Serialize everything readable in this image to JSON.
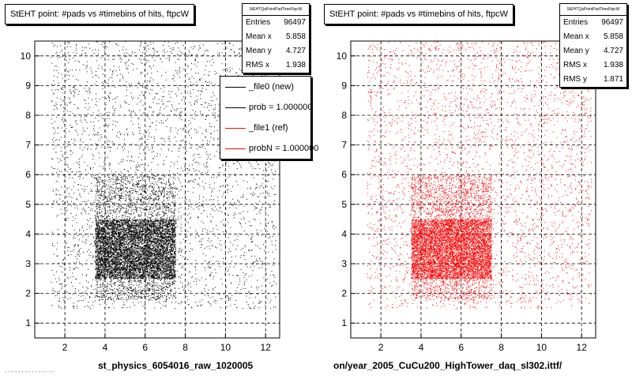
{
  "panels": [
    {
      "title": "StEHT point: #pads vs #timebins of hits, ftpcW",
      "stats_header": "StEHTQaPointPadTimeFtpcW",
      "stats": [
        {
          "label": "Entries",
          "value": "96497"
        },
        {
          "label": "Mean x",
          "value": "5.858"
        },
        {
          "label": "Mean y",
          "value": "4.727"
        },
        {
          "label": "RMS x",
          "value": "1.938"
        }
      ],
      "legend": [
        {
          "text": "_file0 (new)",
          "color": "#000000"
        },
        {
          "text": "prob = 1.000000",
          "color": "#000000"
        },
        {
          "text": "_file1 (ref)",
          "color": "#ff0000"
        },
        {
          "text": "probN = 1.000000",
          "color": "#ff0000"
        }
      ],
      "footer": "st_physics_6054016_raw_1020005",
      "point_color": "#000000"
    },
    {
      "title": "StEHT point: #pads vs #timebins of hits, ftpcW",
      "stats_header": "StEHTQaPointPadTimeFtpcW",
      "stats": [
        {
          "label": "Entries",
          "value": "96497"
        },
        {
          "label": "Mean x",
          "value": "5.858"
        },
        {
          "label": "Mean y",
          "value": "4.727"
        },
        {
          "label": "RMS x",
          "value": "1.938"
        },
        {
          "label": "RMS y",
          "value": "1.871"
        }
      ],
      "footer": "on/year_2005_CuCu200_HighTower_daq_sl302.ittf/",
      "point_color": "#ff0000"
    }
  ],
  "stray_text": "- - - - - -  - - - - - - - - -",
  "chart_data": [
    {
      "type": "scatter",
      "title": "StEHT point: #pads vs #timebins of hits, ftpcW",
      "xlim": [
        0.5,
        12.7
      ],
      "ylim": [
        0.5,
        10.5
      ],
      "x_ticks": [
        2,
        4,
        6,
        8,
        10,
        12
      ],
      "y_ticks": [
        1,
        2,
        3,
        4,
        5,
        6,
        7,
        8,
        9,
        10
      ],
      "grid": true,
      "color": "#000000",
      "entries": 96497,
      "mean_x": 5.858,
      "mean_y": 4.727,
      "rms_x": 1.938,
      "dense_region": {
        "x": [
          3.5,
          7.5
        ],
        "y": [
          2.5,
          4.5
        ]
      },
      "xlabel": "st_physics_6054016_raw_1020005"
    },
    {
      "type": "scatter",
      "title": "StEHT point: #pads vs #timebins of hits, ftpcW",
      "xlim": [
        0.5,
        12.7
      ],
      "ylim": [
        0.5,
        10.5
      ],
      "x_ticks": [
        2,
        4,
        6,
        8,
        10,
        12
      ],
      "y_ticks": [
        1,
        2,
        3,
        4,
        5,
        6,
        7,
        8,
        9,
        10
      ],
      "grid": true,
      "color": "#ff0000",
      "entries": 96497,
      "mean_x": 5.858,
      "mean_y": 4.727,
      "rms_x": 1.938,
      "rms_y": 1.871,
      "dense_region": {
        "x": [
          3.5,
          7.5
        ],
        "y": [
          2.5,
          4.5
        ]
      },
      "xlabel": "on/year_2005_CuCu200_HighTower_daq_sl302.ittf/"
    }
  ]
}
